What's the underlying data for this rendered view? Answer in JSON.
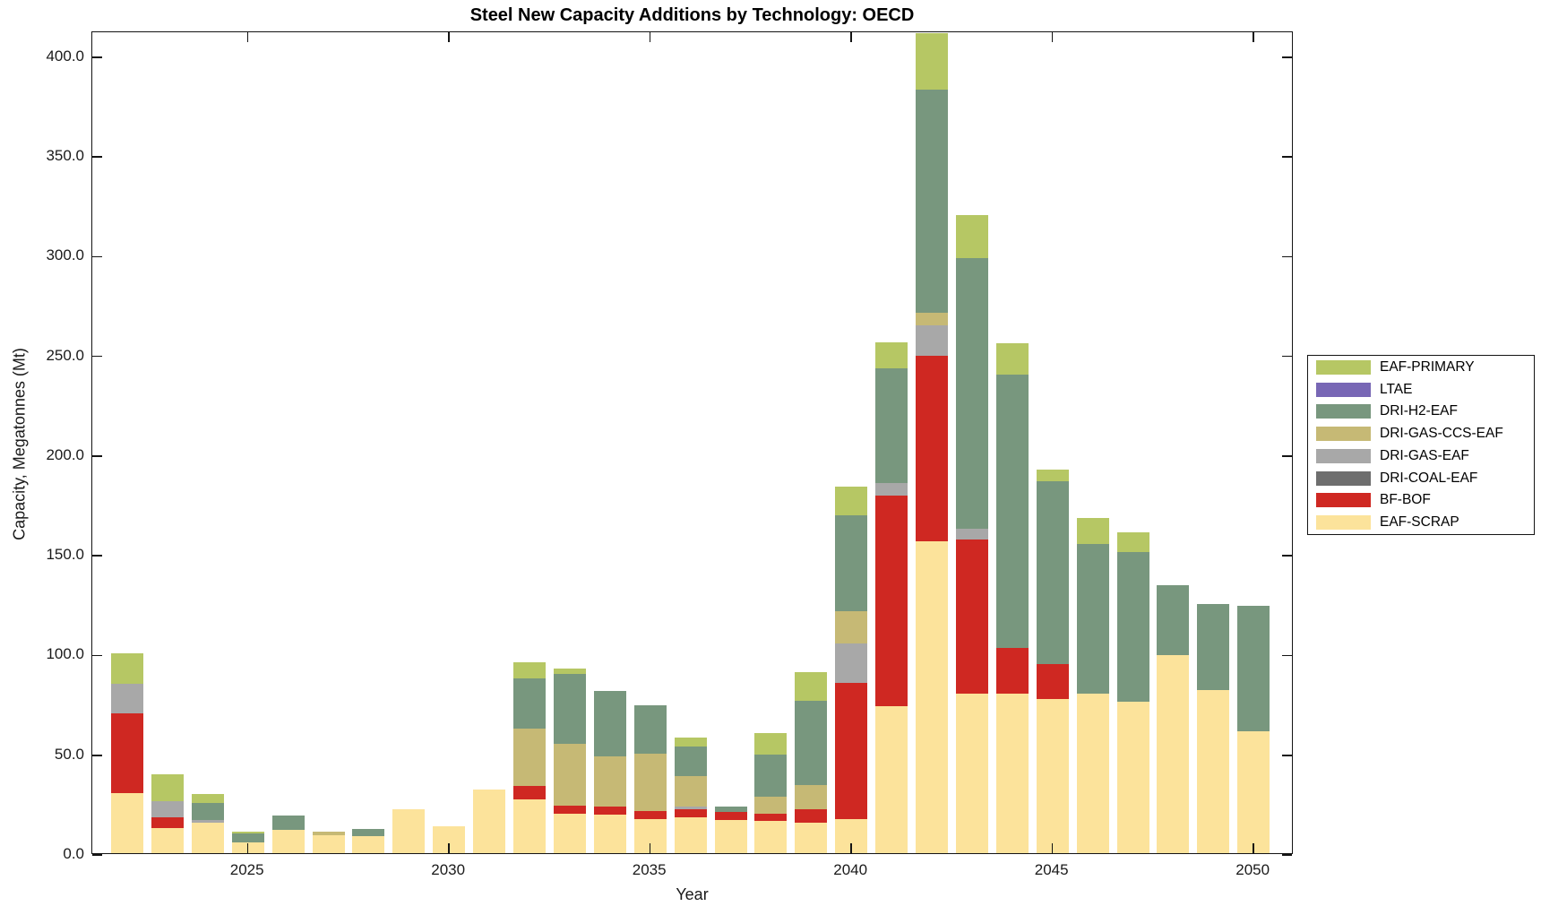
{
  "chart_data": {
    "type": "bar",
    "stacked": true,
    "title": "Steel New Capacity Additions by Technology: OECD",
    "xlabel": "Year",
    "ylabel": "Capacity, Megatonnes (Mt)",
    "ylim": [
      0,
      412.5
    ],
    "grid": false,
    "legend_position": "outside-right",
    "years": [
      2022,
      2023,
      2024,
      2025,
      2026,
      2027,
      2028,
      2029,
      2030,
      2031,
      2032,
      2033,
      2034,
      2035,
      2036,
      2037,
      2038,
      2039,
      2040,
      2041,
      2042,
      2043,
      2044,
      2045,
      2046,
      2047,
      2048,
      2049,
      2050
    ],
    "xticks": [
      2025,
      2030,
      2035,
      2040,
      2045,
      2050
    ],
    "xtick_labels": [
      "2025",
      "2030",
      "2035",
      "2040",
      "2045",
      "2050"
    ],
    "ytick_values": [
      0,
      50,
      100,
      150,
      200,
      250,
      300,
      350,
      400
    ],
    "ytick_labels": [
      "0.0",
      "50.0",
      "100.0",
      "150.0",
      "200.0",
      "250.0",
      "300.0",
      "350.0",
      "400.0"
    ],
    "legend_top_to_bottom": [
      "EAF-PRIMARY",
      "LTAE",
      "DRI-H2-EAF",
      "DRI-GAS-CCS-EAF",
      "DRI-GAS-EAF",
      "DRI-COAL-EAF",
      "BF-BOF",
      "EAF-SCRAP"
    ],
    "series": [
      {
        "name": "EAF-SCRAP",
        "color": "#fce39b",
        "values": [
          30,
          12.5,
          15.5,
          5.5,
          11.5,
          9,
          8.5,
          22,
          13.5,
          32,
          27,
          20,
          19.5,
          17,
          18,
          16.5,
          16,
          15.5,
          17,
          73.5,
          156.5,
          80,
          80,
          77.5,
          80,
          76,
          99.5,
          82,
          61
        ]
      },
      {
        "name": "BF-BOF",
        "color": "#cf2822",
        "values": [
          40,
          5.5,
          0,
          0,
          0,
          0,
          0,
          0,
          0,
          0,
          6.5,
          4,
          4,
          4,
          4,
          4,
          4,
          6.5,
          68.5,
          106,
          93,
          77.5,
          23,
          17.5,
          0,
          0,
          0,
          0,
          0
        ]
      },
      {
        "name": "DRI-COAL-EAF",
        "color": "#6e6e6e",
        "values": [
          0,
          0,
          0,
          0,
          0,
          0,
          0,
          0,
          0,
          0,
          0,
          0,
          0,
          0,
          0,
          0,
          0,
          0,
          0,
          0,
          0,
          0,
          0,
          0,
          0,
          0,
          0,
          0,
          0
        ]
      },
      {
        "name": "DRI-GAS-EAF",
        "color": "#a8a8a8",
        "values": [
          15,
          8,
          1,
          0,
          0,
          0,
          0,
          0,
          0,
          0,
          0,
          0,
          0,
          0,
          1.5,
          0,
          0,
          0,
          19.5,
          6,
          15,
          5,
          0,
          0,
          0,
          0,
          0,
          0,
          0
        ]
      },
      {
        "name": "DRI-GAS-CCS-EAF",
        "color": "#c6b975",
        "values": [
          0,
          0,
          0,
          0,
          0,
          2,
          0,
          0,
          0,
          0,
          29,
          31,
          25,
          29,
          15,
          0,
          8.5,
          12,
          16.5,
          0,
          6.5,
          0,
          0,
          0,
          0,
          0,
          0,
          0,
          0
        ]
      },
      {
        "name": "DRI-H2-EAF",
        "color": "#78977e",
        "values": [
          0,
          0,
          8.5,
          4.5,
          7.5,
          0,
          3.5,
          0,
          0,
          0,
          25,
          35,
          33,
          24,
          15,
          3,
          21,
          42.5,
          48,
          57.5,
          112,
          136,
          137,
          91.5,
          75,
          75,
          35,
          43,
          63
        ]
      },
      {
        "name": "LTAE",
        "color": "#7867b5",
        "values": [
          0,
          0,
          0,
          0,
          0,
          0,
          0,
          0,
          0,
          0,
          0,
          0,
          0,
          0,
          0,
          0,
          0,
          0,
          0,
          0,
          0,
          0,
          0,
          0,
          0,
          0,
          0,
          0,
          0
        ]
      },
      {
        "name": "EAF-PRIMARY",
        "color": "#b6c764",
        "values": [
          15,
          13.5,
          4.5,
          1,
          0,
          0,
          0,
          0,
          0,
          0,
          8,
          2.5,
          0,
          0,
          4.5,
          0,
          10.5,
          14.5,
          14.5,
          13,
          28,
          21.5,
          15.5,
          6,
          13,
          10,
          0,
          0,
          0
        ]
      }
    ]
  }
}
